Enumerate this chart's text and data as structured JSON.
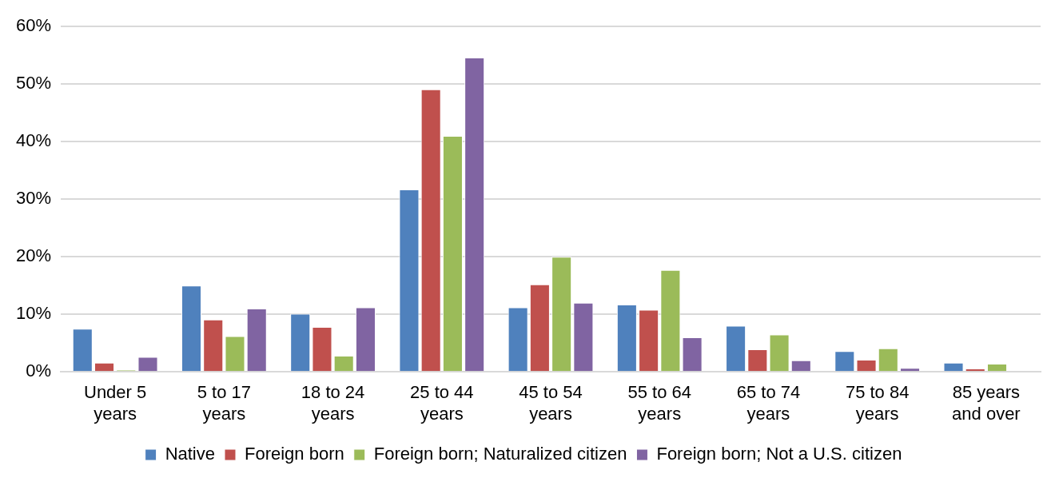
{
  "chart_data": {
    "type": "bar",
    "categories": [
      "Under 5 years",
      "5 to 17 years",
      "18 to 24 years",
      "25 to 44 years",
      "45 to 54 years",
      "55 to 64 years",
      "65 to 74 years",
      "75 to 84 years",
      "85 years and over"
    ],
    "series": [
      {
        "name": "Native",
        "color": "#4f81bd",
        "values": [
          7.5,
          15.0,
          10.1,
          31.7,
          11.2,
          11.7,
          8.0,
          3.6,
          1.6
        ]
      },
      {
        "name": "Foreign born",
        "color": "#c0504d",
        "values": [
          1.6,
          9.1,
          7.8,
          49.1,
          15.2,
          10.8,
          3.9,
          2.1,
          0.6
        ]
      },
      {
        "name": "Foreign born; Naturalized citizen",
        "color": "#9bbb59",
        "values": [
          0.3,
          6.2,
          2.8,
          41.0,
          20.0,
          17.7,
          6.5,
          4.1,
          1.4
        ]
      },
      {
        "name": "Foreign born; Not a U.S. citizen",
        "color": "#8064a2",
        "values": [
          2.6,
          11.0,
          11.2,
          54.6,
          12.0,
          6.0,
          2.0,
          0.7,
          0
        ]
      }
    ],
    "ylim": [
      0,
      60
    ],
    "yticks": [
      {
        "value": 0,
        "label": "0%"
      },
      {
        "value": 10,
        "label": "10%"
      },
      {
        "value": 20,
        "label": "20%"
      },
      {
        "value": 30,
        "label": "30%"
      },
      {
        "value": 40,
        "label": "40%"
      },
      {
        "value": 50,
        "label": "50%"
      },
      {
        "value": 60,
        "label": "60%"
      }
    ],
    "grid": "y",
    "legend": "bottom"
  }
}
